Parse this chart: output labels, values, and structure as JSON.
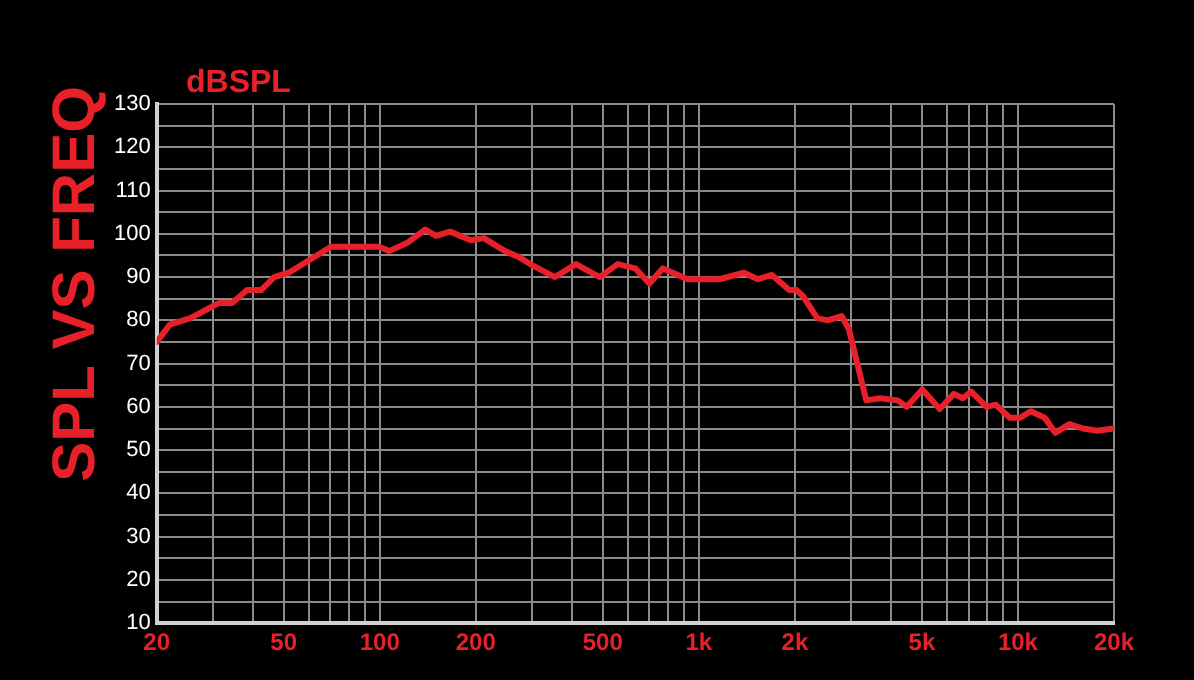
{
  "chart_data": {
    "type": "line",
    "title": "SPL VS FREQ",
    "ylabel": "dBSPL",
    "x": [
      20,
      22,
      25.5,
      31.3,
      34.5,
      38.4,
      42.5,
      46.7,
      51.9,
      60.4,
      70.3,
      81.8,
      90.6,
      99.6,
      107,
      122.6,
      139,
      150,
      166,
      193,
      212,
      247,
      275,
      296,
      354,
      412,
      489,
      557,
      632,
      700,
      771,
      923,
      1159,
      1384,
      1531,
      1694,
      1920,
      2024,
      2125,
      2350,
      2536,
      2804,
      2952,
      3347,
      3707,
      4201,
      4486,
      5017,
      5687,
      6295,
      6721,
      7140,
      7976,
      8521,
      9425,
      10166,
      10965,
      12130,
      13090,
      14490,
      16000,
      17710,
      20000
    ],
    "series": [
      {
        "color": "#e8202a",
        "values": [
          75,
          79,
          80.5,
          84,
          84,
          87,
          87,
          90,
          91,
          94,
          97,
          97,
          97,
          97,
          96,
          98,
          101,
          99.5,
          100.5,
          98.5,
          99,
          96,
          94.5,
          93,
          90,
          93,
          90,
          93,
          92,
          88.5,
          92,
          89.5,
          89.5,
          91,
          89.5,
          90.5,
          87,
          87,
          85.5,
          80.5,
          80,
          81,
          78,
          61.5,
          62,
          61.5,
          60,
          64,
          59.5,
          63,
          62,
          63.5,
          60,
          60.5,
          57.5,
          57.5,
          59,
          57.5,
          54,
          56,
          55,
          54.5,
          55
        ]
      }
    ],
    "xlim": [
      20,
      20000
    ],
    "xticks": [
      {
        "value": 20,
        "label": "20"
      },
      {
        "value": 30,
        "label": null
      },
      {
        "value": 40,
        "label": null
      },
      {
        "value": 50,
        "label": "50"
      },
      {
        "value": 60,
        "label": null
      },
      {
        "value": 70,
        "label": null
      },
      {
        "value": 80,
        "label": null
      },
      {
        "value": 90,
        "label": null
      },
      {
        "value": 100,
        "label": "100"
      },
      {
        "value": 200,
        "label": "200"
      },
      {
        "value": 300,
        "label": null
      },
      {
        "value": 400,
        "label": null
      },
      {
        "value": 500,
        "label": "500"
      },
      {
        "value": 600,
        "label": null
      },
      {
        "value": 700,
        "label": null
      },
      {
        "value": 800,
        "label": null
      },
      {
        "value": 900,
        "label": null
      },
      {
        "value": 1000,
        "label": "1k"
      },
      {
        "value": 2000,
        "label": "2k"
      },
      {
        "value": 3000,
        "label": null
      },
      {
        "value": 4000,
        "label": null
      },
      {
        "value": 5000,
        "label": "5k"
      },
      {
        "value": 6000,
        "label": null
      },
      {
        "value": 7000,
        "label": null
      },
      {
        "value": 8000,
        "label": null
      },
      {
        "value": 9000,
        "label": null
      },
      {
        "value": 10000,
        "label": "10k"
      },
      {
        "value": 20000,
        "label": "20k"
      }
    ],
    "ylim": [
      10,
      130
    ],
    "yticks": [
      10,
      {
        "value": 15,
        "label": null
      },
      20,
      {
        "value": 25,
        "label": null
      },
      30,
      {
        "value": 35,
        "label": null
      },
      40,
      {
        "value": 45,
        "label": null
      },
      50,
      {
        "value": 55,
        "label": null
      },
      60,
      {
        "value": 65,
        "label": null
      },
      70,
      {
        "value": 75,
        "label": null
      },
      80,
      {
        "value": 85,
        "label": null
      },
      90,
      {
        "value": 95,
        "label": null
      },
      100,
      {
        "value": 105,
        "label": null
      },
      110,
      {
        "value": 115,
        "label": null
      },
      120,
      {
        "value": 125,
        "label": null
      },
      130
    ],
    "log": "x",
    "grid": true,
    "marker": "none",
    "line_style": "solid"
  }
}
